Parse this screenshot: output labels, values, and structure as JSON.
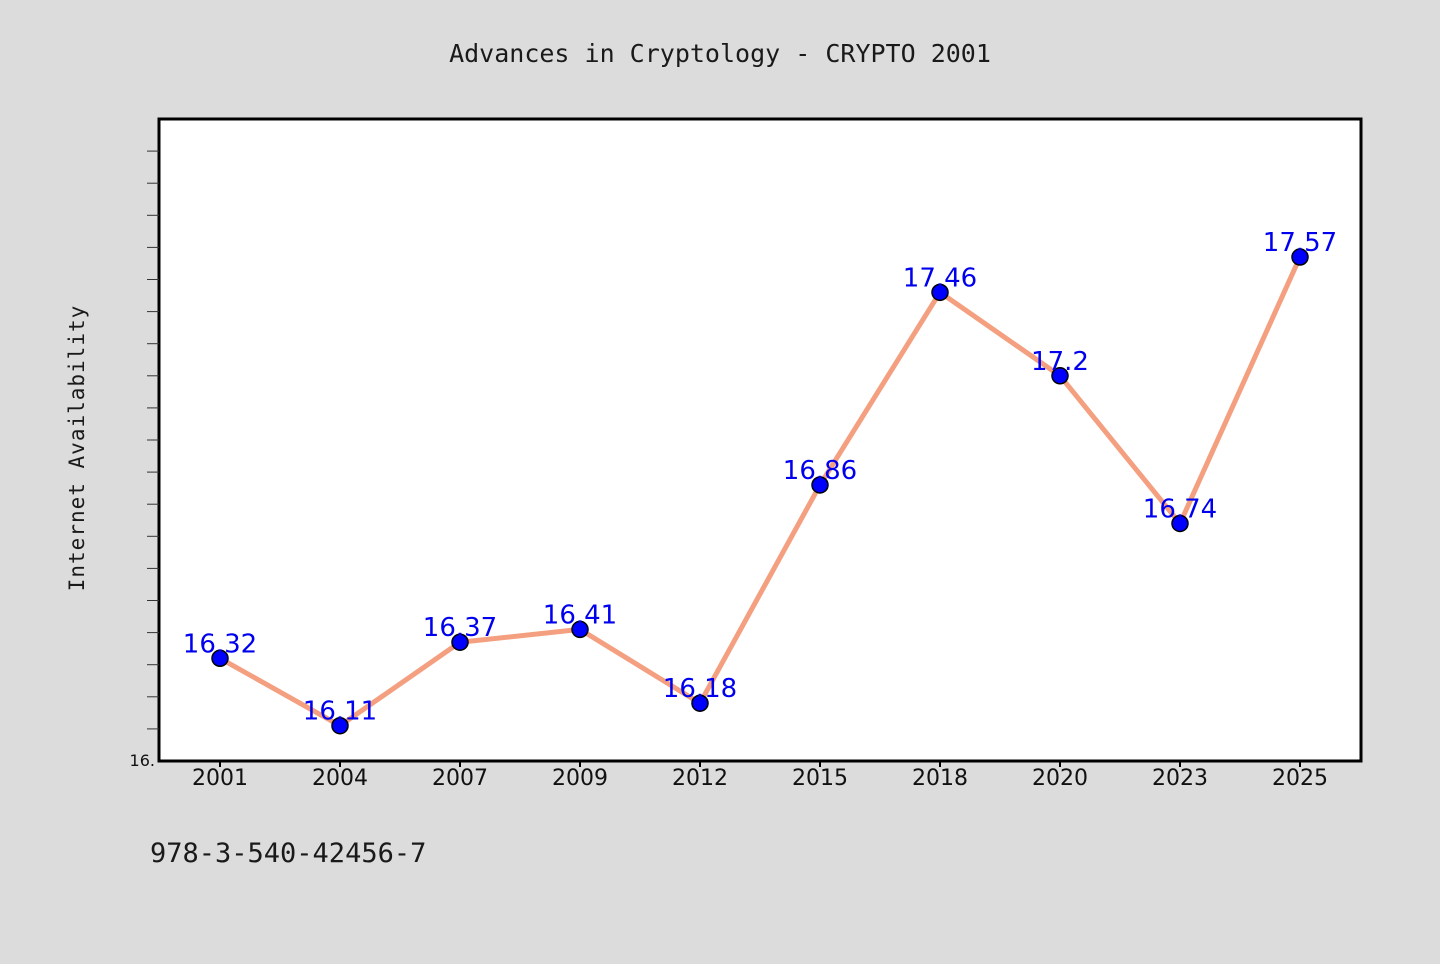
{
  "chart_data": {
    "type": "line",
    "title": "Advances in Cryptology - CRYPTO 2001",
    "ylabel": "Internet Availability",
    "xlabel": "",
    "categories": [
      "2001",
      "2004",
      "2007",
      "2009",
      "2012",
      "2015",
      "2018",
      "2020",
      "2023",
      "2025"
    ],
    "values": [
      16.32,
      16.11,
      16.37,
      16.41,
      16.18,
      16.86,
      17.46,
      17.2,
      16.74,
      17.57
    ],
    "data_labels": [
      "16.32",
      "16.11",
      "16.37",
      "16.41",
      "16.18",
      "16.86",
      "17.46",
      "17.2",
      "16.74",
      "17.57"
    ],
    "y_tick_labels": [
      "16."
    ],
    "ylim": [
      16.0,
      18.0
    ],
    "grid": false,
    "line_color": "#f4a080",
    "marker_color": "#0000ff",
    "label_color": "#0000ee",
    "background_color": "#dcdcdc",
    "plot_background": "#ffffff"
  },
  "footer": {
    "isbn": "978-3-540-42456-7"
  }
}
